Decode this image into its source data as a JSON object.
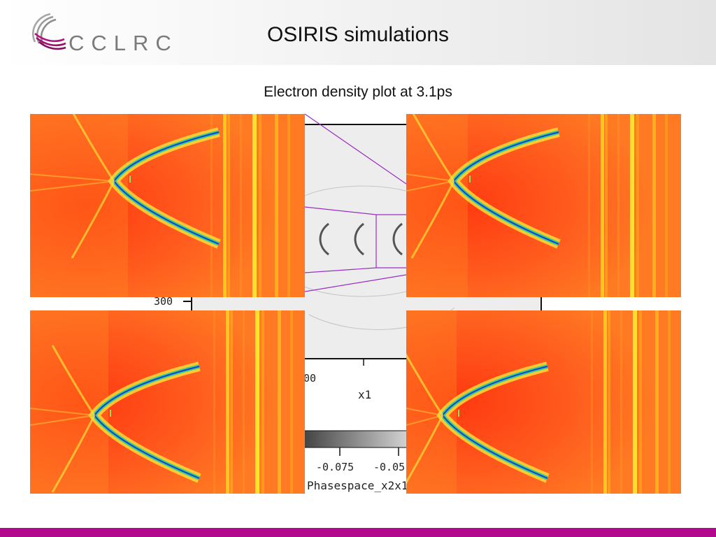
{
  "header": {
    "logo_text": "CCLRC",
    "title": "OSIRIS simulations"
  },
  "subtitle": "Electron density plot at 3.1ps",
  "center_plot": {
    "y_tick_label": "300",
    "x_tick_label": "00",
    "x_axis_label": "x1",
    "colorbar_tick_1": "-0.075",
    "colorbar_tick_2": "-0.05",
    "colorbar_label": "Phasespace_x2x1"
  },
  "colors": {
    "bottom_bar": "#b10a8c",
    "zoom_lines": "#9a2fc4",
    "density_background": "#ff4a1a"
  },
  "panels": [
    {
      "name": "density-panel-top-left"
    },
    {
      "name": "density-panel-top-right"
    },
    {
      "name": "density-panel-bottom-left"
    },
    {
      "name": "density-panel-bottom-right"
    }
  ]
}
